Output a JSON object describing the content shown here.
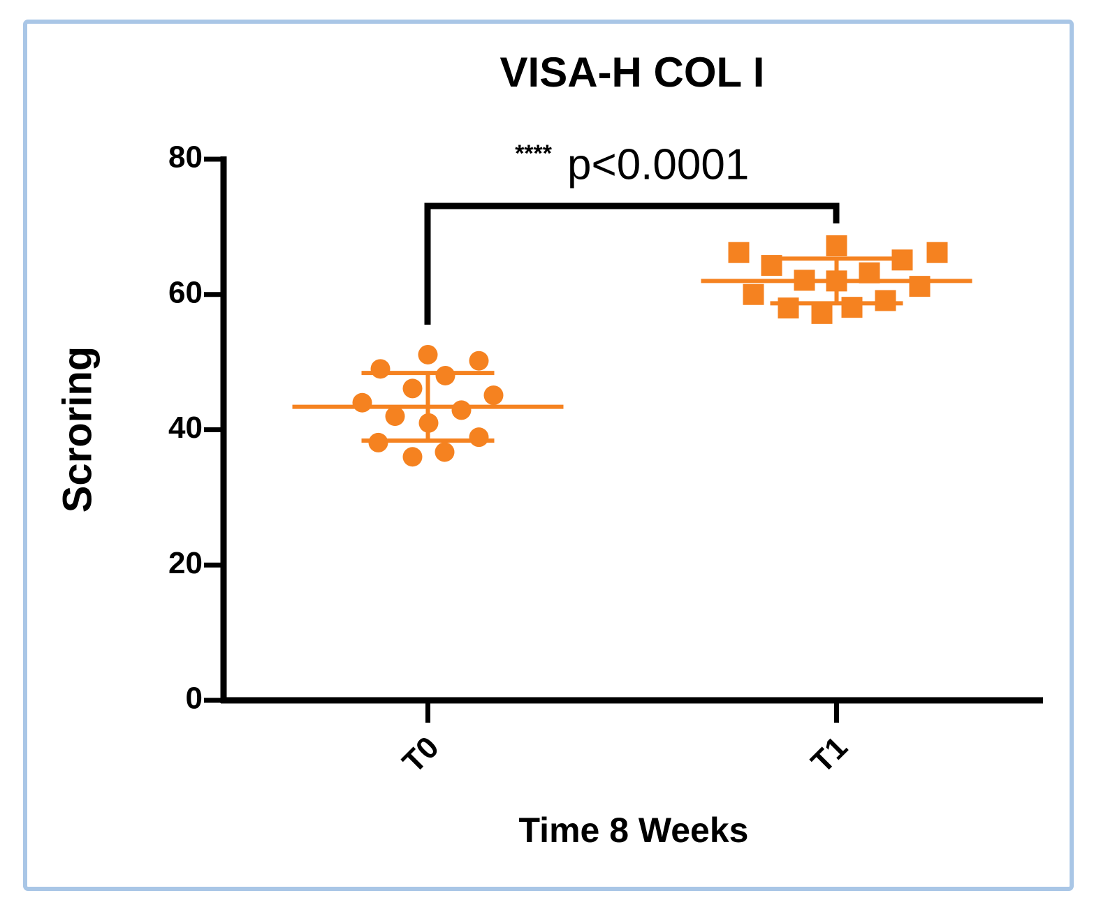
{
  "chart_data": {
    "type": "dot",
    "title": "VISA-H COL I",
    "y_label": "Scroring",
    "x_label": "Time 8 Weeks",
    "annotation_stars": "****",
    "annotation_p": "p<0.0001",
    "categories": [
      "T0",
      "T1"
    ],
    "groups": [
      {
        "category": "T0",
        "marker": "circle",
        "color": "#f58220",
        "values": [
          51.1,
          49.0,
          50.2,
          48.0,
          46.1,
          44.0,
          45.1,
          42.9,
          42.0,
          41.0,
          38.1,
          38.9,
          36.7,
          36.0
        ],
        "mean": 43.4,
        "sd": 5.0
      },
      {
        "category": "T1",
        "marker": "square",
        "color": "#f58220",
        "values": [
          66.2,
          67.2,
          66.2,
          64.3,
          65.1,
          62.1,
          62.0,
          63.2,
          61.2,
          60.0,
          58.0,
          58.1,
          59.1,
          57.2
        ],
        "mean": 62.0,
        "sd": 3.3
      }
    ],
    "ylim": [
      0,
      80
    ],
    "yticks": [
      0,
      20,
      40,
      60,
      80
    ]
  }
}
